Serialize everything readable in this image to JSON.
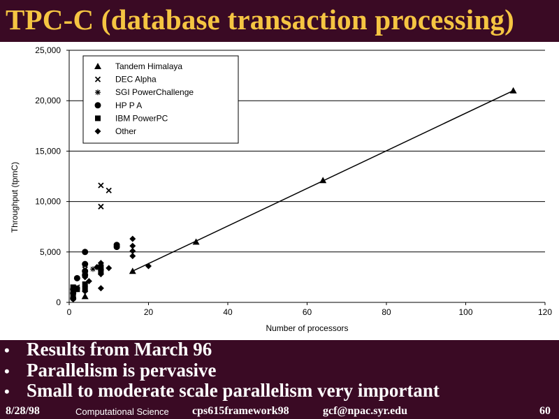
{
  "slide": {
    "title": "TPC-C (database transaction processing)",
    "bullets": [
      "Results from March 96",
      "Parallelism is pervasive",
      "Small to moderate scale parallelism very important"
    ],
    "bullet_glyph": "•",
    "footer": {
      "date": "8/28/98",
      "course": "Computational Science",
      "code": "cps615framework98",
      "email": "gcf@npac.syr.edu",
      "page": "60"
    },
    "colors": {
      "background": "#3a0a24",
      "title": "#f5c542",
      "text": "#ffffff"
    }
  },
  "chart_data": {
    "type": "scatter",
    "title": "",
    "xlabel": "Number of processors",
    "ylabel": "Throughput (tpmC)",
    "xlim": [
      0,
      120
    ],
    "ylim": [
      0,
      25000
    ],
    "xticks": [
      "0",
      "20",
      "40",
      "60",
      "80",
      "100",
      "120"
    ],
    "yticks": [
      "0",
      "5,000",
      "10,000",
      "15,000",
      "20,000",
      "25,000"
    ],
    "grid": "horizontal",
    "legend_position": "top-left",
    "series": [
      {
        "name": "Tandem Himalaya",
        "marker": "triangle",
        "points": [
          [
            4,
            600
          ],
          [
            16,
            3100
          ],
          [
            32,
            6000
          ],
          [
            64,
            12100
          ],
          [
            112,
            21000
          ]
        ]
      },
      {
        "name": "DEC Alpha",
        "marker": "x",
        "points": [
          [
            2,
            1500
          ],
          [
            4,
            3300
          ],
          [
            8,
            9500
          ],
          [
            8,
            11600
          ],
          [
            10,
            11100
          ]
        ]
      },
      {
        "name": "SGI PowerChallenge",
        "marker": "asterisk",
        "points": [
          [
            2,
            1300
          ],
          [
            4,
            2900
          ],
          [
            6,
            3300
          ]
        ]
      },
      {
        "name": "HP P A",
        "marker": "circle",
        "points": [
          [
            1,
            400
          ],
          [
            1,
            900
          ],
          [
            1,
            1300
          ],
          [
            2,
            2400
          ],
          [
            4,
            2700
          ],
          [
            4,
            3100
          ],
          [
            4,
            3800
          ],
          [
            4,
            5000
          ],
          [
            12,
            5500
          ],
          [
            12,
            5700
          ]
        ]
      },
      {
        "name": "IBM PowerPC",
        "marker": "square",
        "points": [
          [
            1,
            700
          ],
          [
            1,
            1100
          ],
          [
            1,
            1500
          ],
          [
            2,
            1300
          ],
          [
            4,
            1300
          ],
          [
            4,
            1800
          ],
          [
            8,
            3100
          ],
          [
            8,
            3500
          ]
        ]
      },
      {
        "name": "Other",
        "marker": "diamond",
        "points": [
          [
            1,
            300
          ],
          [
            1,
            900
          ],
          [
            2,
            1400
          ],
          [
            4,
            1100
          ],
          [
            4,
            2500
          ],
          [
            5,
            2100
          ],
          [
            7,
            3500
          ],
          [
            8,
            1400
          ],
          [
            8,
            2800
          ],
          [
            8,
            3200
          ],
          [
            8,
            3900
          ],
          [
            10,
            3400
          ],
          [
            16,
            4600
          ],
          [
            16,
            5100
          ],
          [
            16,
            5600
          ],
          [
            16,
            6300
          ],
          [
            20,
            3600
          ]
        ]
      }
    ],
    "trendline": {
      "points": [
        [
          16,
          3100
        ],
        [
          112,
          21000
        ]
      ]
    }
  }
}
